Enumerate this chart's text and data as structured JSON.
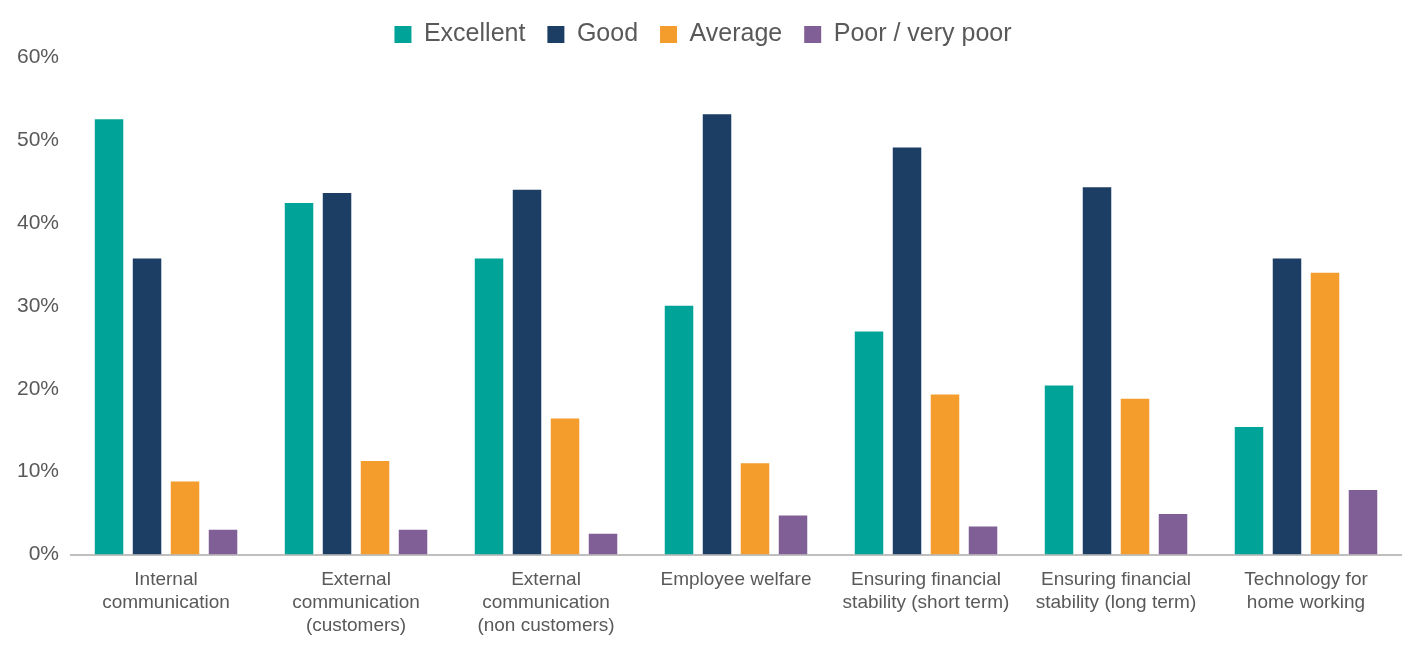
{
  "chart_data": {
    "type": "bar",
    "categories": [
      "Internal communication",
      "External communication (customers)",
      "External communication (non customers)",
      "Employee welfare",
      "Ensuring financial stability (short term)",
      "Ensuring financial stability (long term)",
      "Technology for home working"
    ],
    "series": [
      {
        "name": "Excellent",
        "color": "#00a398",
        "values": [
          52.5,
          42.4,
          35.7,
          30.0,
          26.9,
          20.4,
          15.4
        ]
      },
      {
        "name": "Good",
        "color": "#1c3d64",
        "values": [
          35.7,
          43.6,
          44.0,
          53.1,
          49.1,
          44.3,
          35.7
        ]
      },
      {
        "name": "Average",
        "color": "#f49d2c",
        "values": [
          8.8,
          11.3,
          16.4,
          11.0,
          19.3,
          18.8,
          34.0
        ]
      },
      {
        "name": "Poor / very poor",
        "color": "#7f5f96",
        "values": [
          3.0,
          3.0,
          2.5,
          4.7,
          3.4,
          4.9,
          7.8
        ]
      }
    ],
    "ylim": [
      0,
      60
    ],
    "yticks": [
      {
        "value": 0,
        "label": "0%"
      },
      {
        "value": 10,
        "label": "10%"
      },
      {
        "value": 20,
        "label": "20%"
      },
      {
        "value": 30,
        "label": "30%"
      },
      {
        "value": 40,
        "label": "40%"
      },
      {
        "value": 50,
        "label": "50%"
      },
      {
        "value": 60,
        "label": "60%"
      }
    ],
    "grid": false,
    "legend": "top"
  }
}
